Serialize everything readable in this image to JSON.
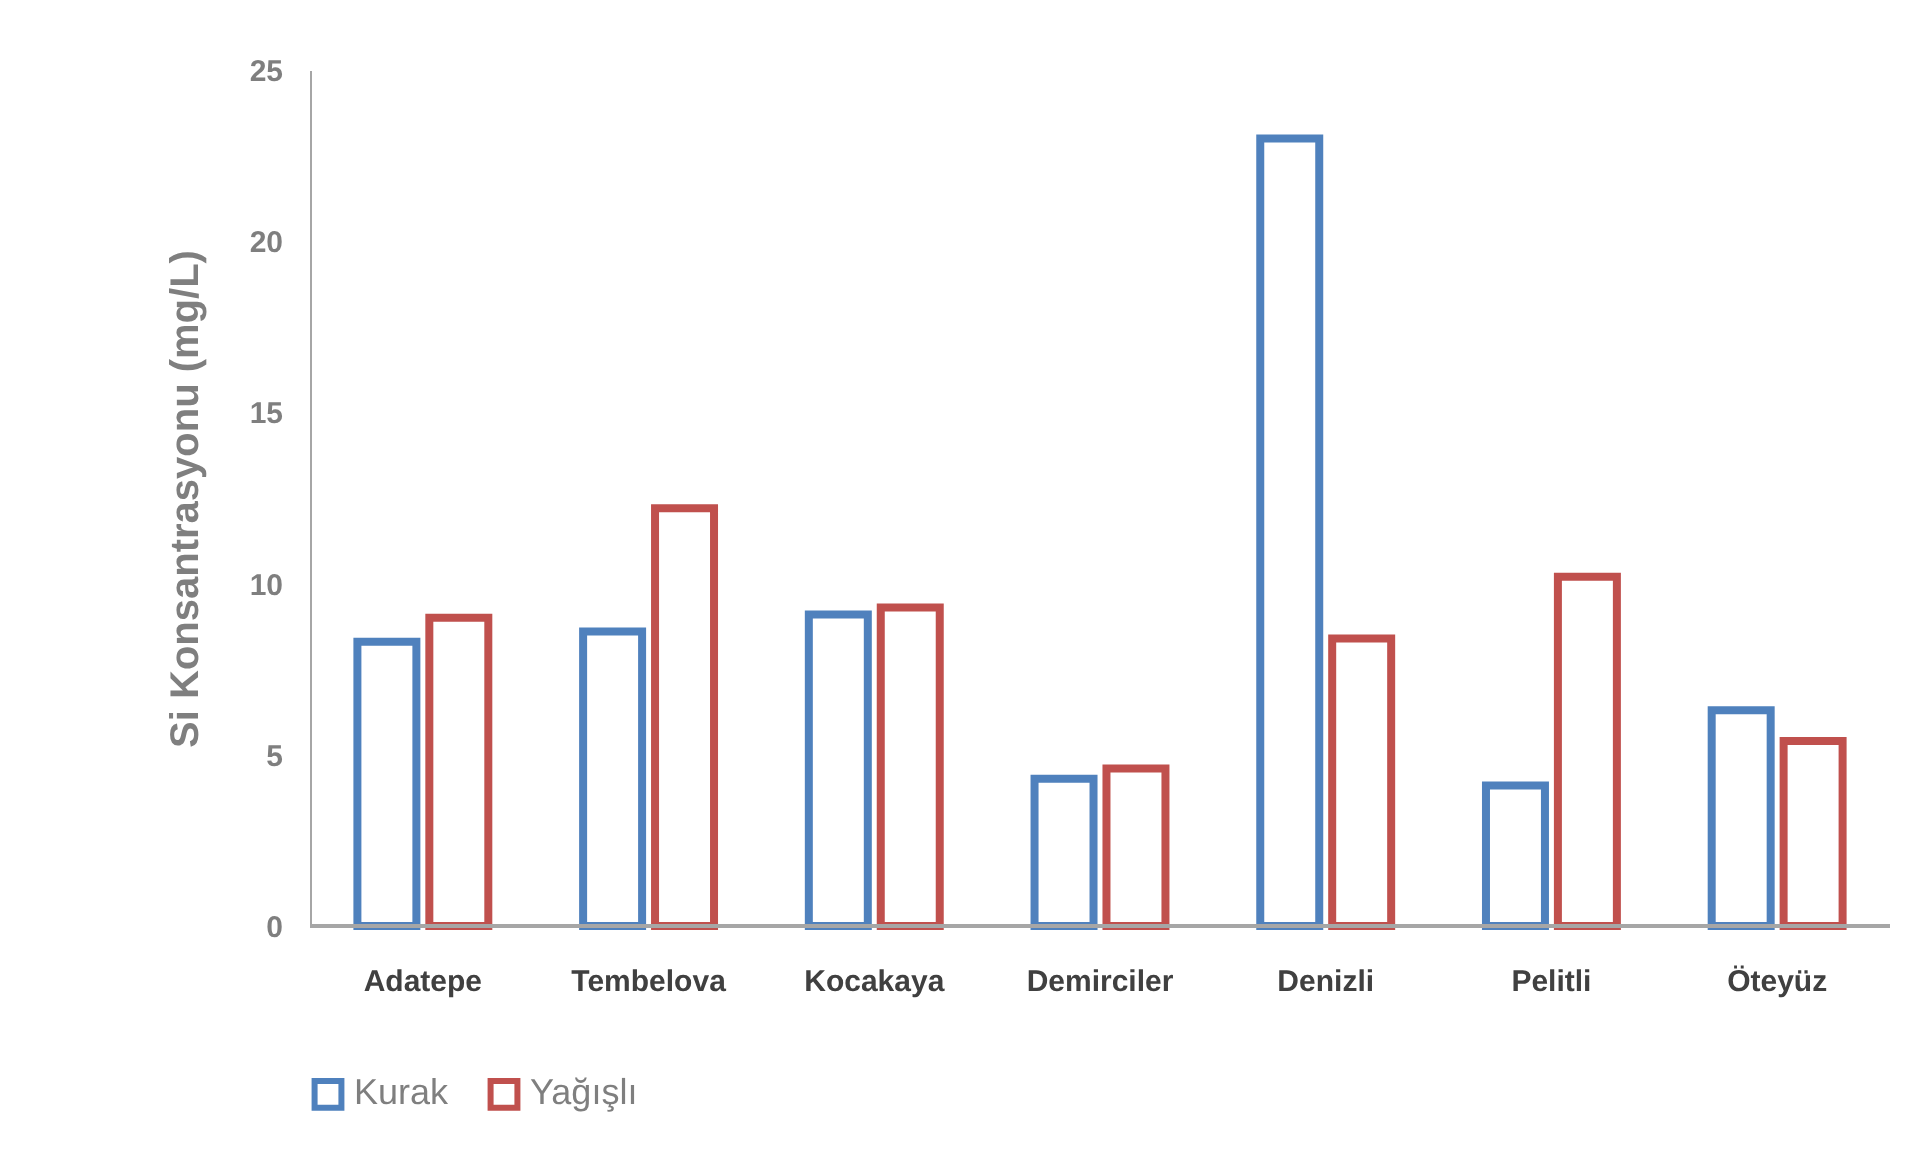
{
  "chart_data": {
    "type": "bar",
    "ylabel": "Si Konsantrasyonu (mg/L)",
    "categories": [
      "Adatepe",
      "Tembelova",
      "Kocakaya",
      "Demirciler",
      "Denizli",
      "Pelitli",
      "Öteyüz"
    ],
    "series": [
      {
        "name": "Kurak",
        "color": "#4f81bd",
        "values": [
          8.3,
          8.6,
          9.1,
          4.3,
          23.0,
          4.1,
          6.3
        ]
      },
      {
        "name": "Yağışlı",
        "color": "#c0504d",
        "values": [
          9.0,
          12.2,
          9.3,
          4.6,
          8.4,
          10.2,
          5.4
        ]
      }
    ],
    "ylim": [
      0,
      25
    ],
    "yticks": [
      0,
      5,
      10,
      15,
      20,
      25
    ],
    "grid": false,
    "legend": "bottom"
  }
}
